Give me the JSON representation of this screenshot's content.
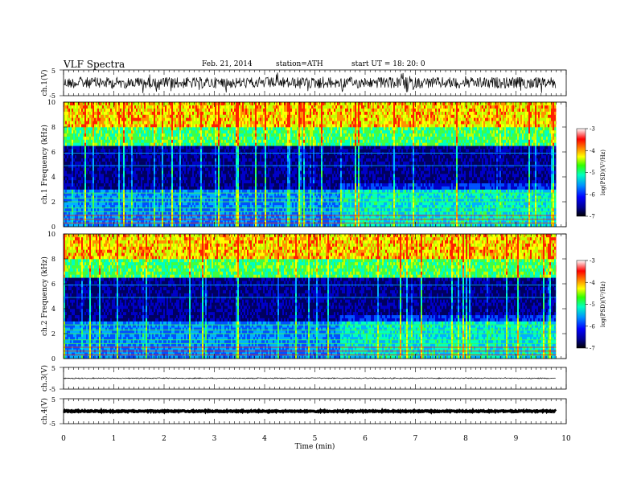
{
  "header": {
    "title": "VLF  Spectra",
    "date": "Feb. 21, 2014",
    "station": "station=ATH",
    "start": "start  UT =   18: 20: 0"
  },
  "chart_data": [
    {
      "type": "line",
      "name": "ch1-waveform",
      "ylabel": "ch.1(V)",
      "ylim": [
        -5,
        5
      ],
      "yticks": [
        "5",
        "-5"
      ],
      "xlim": [
        0,
        10
      ],
      "data_end_min": 9.8
    },
    {
      "type": "heatmap",
      "name": "ch1-spectrogram",
      "ylabel": "ch.1 Frequency (kHz)",
      "yticks": [
        "0",
        "2",
        "4",
        "6",
        "8",
        "10"
      ],
      "ylim": [
        0,
        10
      ],
      "xlim": [
        0,
        10
      ],
      "data_end_min": 9.8,
      "colorbar": {
        "label": "log(PSD)(V²/Hz)",
        "ticks": [
          "-3",
          "-4",
          "-5",
          "-6",
          "-7"
        ],
        "range": [
          -7,
          -3
        ]
      }
    },
    {
      "type": "heatmap",
      "name": "ch2-spectrogram",
      "ylabel": "ch.2 Frequency (kHz)",
      "yticks": [
        "0",
        "2",
        "4",
        "6",
        "8",
        "10"
      ],
      "ylim": [
        0,
        10
      ],
      "xlim": [
        0,
        10
      ],
      "data_end_min": 9.8,
      "colorbar": {
        "label": "log(PSD)(V²/Hz)",
        "ticks": [
          "-3",
          "-4",
          "-5",
          "-6",
          "-7"
        ],
        "range": [
          -7,
          -3
        ]
      }
    },
    {
      "type": "line",
      "name": "ch3-waveform",
      "ylabel": "ch.3(V)",
      "ylim": [
        -5,
        5
      ],
      "yticks": [
        "5",
        "-5"
      ],
      "xlim": [
        0,
        10
      ],
      "data_end_min": 9.8
    },
    {
      "type": "line",
      "name": "ch4-waveform",
      "ylabel": "ch.4(V)",
      "ylim": [
        -5,
        5
      ],
      "yticks": [
        "5",
        "-5"
      ],
      "xlim": [
        0,
        10
      ],
      "data_end_min": 9.8
    }
  ],
  "xaxis": {
    "label": "Time  (min)",
    "ticks": [
      "0",
      "1",
      "2",
      "3",
      "4",
      "5",
      "6",
      "7",
      "8",
      "9",
      "10"
    ]
  },
  "colors": {
    "ink": "#000000",
    "colormap": [
      "#000070",
      "#0000ff",
      "#00a0ff",
      "#00ffb0",
      "#40ff00",
      "#ffff00",
      "#ff8000",
      "#ff0000",
      "#ffffff"
    ]
  }
}
